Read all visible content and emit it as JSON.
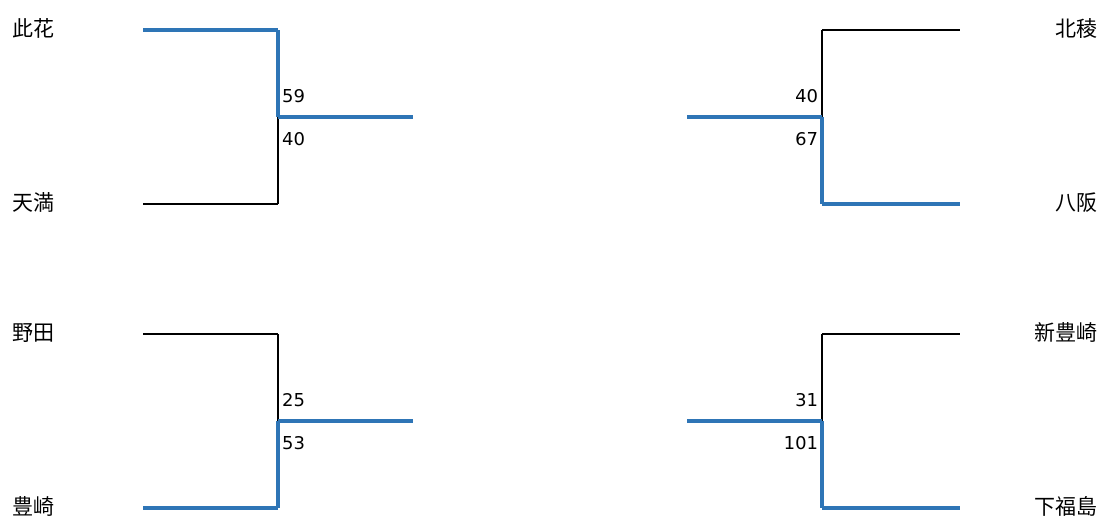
{
  "matches": [
    {
      "teams": [
        {
          "name": "此花",
          "score": 59
        },
        {
          "name": "天満",
          "score": 40
        }
      ],
      "winner": 0
    },
    {
      "teams": [
        {
          "name": "野田",
          "score": 25
        },
        {
          "name": "豊崎",
          "score": 53
        }
      ],
      "winner": 1
    },
    {
      "teams": [
        {
          "name": "北稜",
          "score": 40
        },
        {
          "name": "八阪",
          "score": 67
        }
      ],
      "winner": 1
    },
    {
      "teams": [
        {
          "name": "新豊崎",
          "score": 31
        },
        {
          "name": "下福島",
          "score": 101
        }
      ],
      "winner": 1
    }
  ]
}
